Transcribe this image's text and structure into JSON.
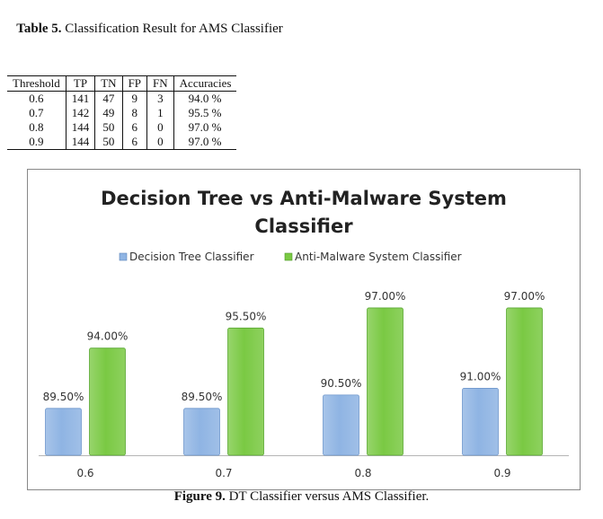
{
  "table": {
    "caption_label": "Table 5.",
    "caption_text": "Classification Result for AMS Classifier",
    "headers": [
      "Threshold",
      "TP",
      "TN",
      "FP",
      "FN",
      "Accuracies"
    ],
    "rows": [
      [
        "0.6",
        "141",
        "47",
        "9",
        "3",
        "94.0 %"
      ],
      [
        "0.7",
        "142",
        "49",
        "8",
        "1",
        "95.5 %"
      ],
      [
        "0.8",
        "144",
        "50",
        "6",
        "0",
        "97.0 %"
      ],
      [
        "0.9",
        "144",
        "50",
        "6",
        "0",
        "97.0 %"
      ]
    ]
  },
  "figure": {
    "caption_label": "Figure 9.",
    "caption_text": "DT Classifier versus AMS Classifier."
  },
  "chart_data": {
    "type": "bar",
    "title_lines": [
      "Decision Tree vs Anti-Malware System",
      "Classifier"
    ],
    "categories": [
      "0.6",
      "0.7",
      "0.8",
      "0.9"
    ],
    "series": [
      {
        "name": "Decision Tree Classifier",
        "values": [
          89.5,
          89.5,
          90.5,
          91.0
        ],
        "labels": [
          "89.50%",
          "89.50%",
          "90.50%",
          "91.00%"
        ],
        "color": "#8fb4e3"
      },
      {
        "name": "Anti-Malware System Classifier",
        "values": [
          94.0,
          95.5,
          97.0,
          97.0
        ],
        "labels": [
          "94.00%",
          "95.50%",
          "97.00%",
          "97.00%"
        ],
        "color": "#7ac943"
      }
    ],
    "ylim": [
      86,
      98
    ],
    "legend": "top-center",
    "grid": false
  }
}
